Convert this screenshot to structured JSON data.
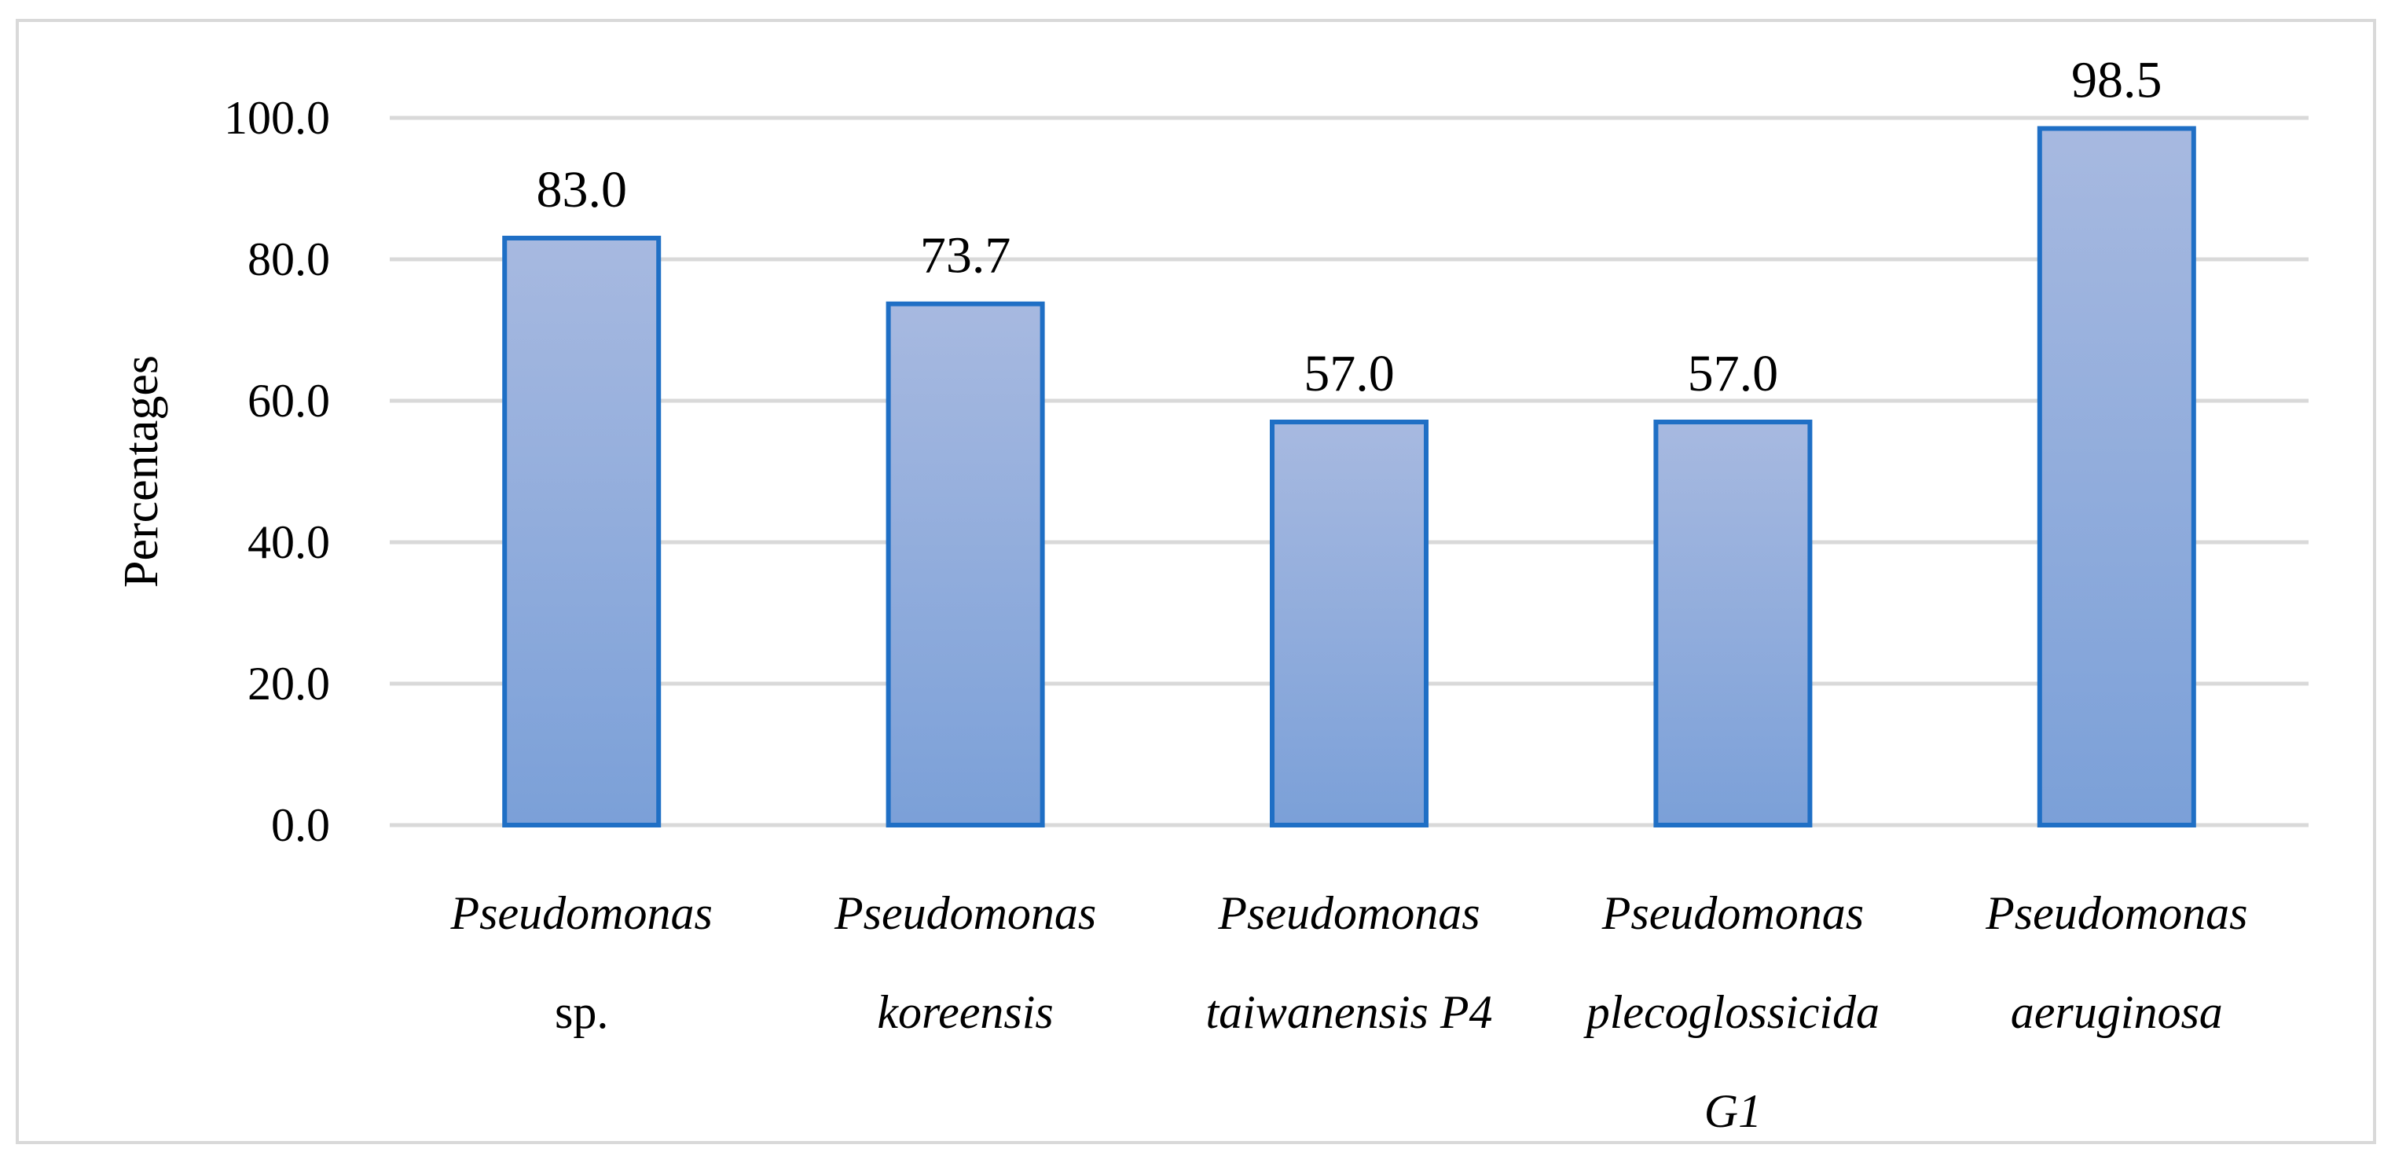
{
  "chart_data": {
    "type": "bar",
    "title": "",
    "xlabel": "",
    "ylabel": "Percentages",
    "ylim": [
      0,
      100
    ],
    "y_ticks": [
      "0.0",
      "20.0",
      "40.0",
      "60.0",
      "80.0",
      "100.0"
    ],
    "y_tick_values": [
      0,
      20,
      40,
      60,
      80,
      100
    ],
    "grid": true,
    "legend": "none",
    "categories": [
      {
        "lines": [
          {
            "text": "Pseudomonas",
            "italic": true
          },
          {
            "text": "sp.",
            "italic": false
          }
        ]
      },
      {
        "lines": [
          {
            "text": "Pseudomonas",
            "italic": true
          },
          {
            "text": "koreensis",
            "italic": true
          }
        ]
      },
      {
        "lines": [
          {
            "text": "Pseudomonas",
            "italic": true
          },
          {
            "text": "taiwanensis P4",
            "italic": true
          }
        ]
      },
      {
        "lines": [
          {
            "text": "Pseudomonas",
            "italic": true
          },
          {
            "text": "plecoglossicida",
            "italic": true
          },
          {
            "text": "G1",
            "italic": true
          }
        ]
      },
      {
        "lines": [
          {
            "text": "Pseudomonas",
            "italic": true
          },
          {
            "text": "aeruginosa",
            "italic": true
          }
        ]
      }
    ],
    "values": [
      83.0,
      73.7,
      57.0,
      57.0,
      98.5
    ],
    "data_labels": [
      "83.0",
      "73.7",
      "57.0",
      "57.0",
      "98.5"
    ],
    "colors": {
      "bar_fill_top": "#a7b9e0",
      "bar_fill_bottom": "#7ba0d8",
      "bar_stroke": "#1f6fc5",
      "grid": "#d9d9d9",
      "frame": "#d9d9d9"
    }
  }
}
